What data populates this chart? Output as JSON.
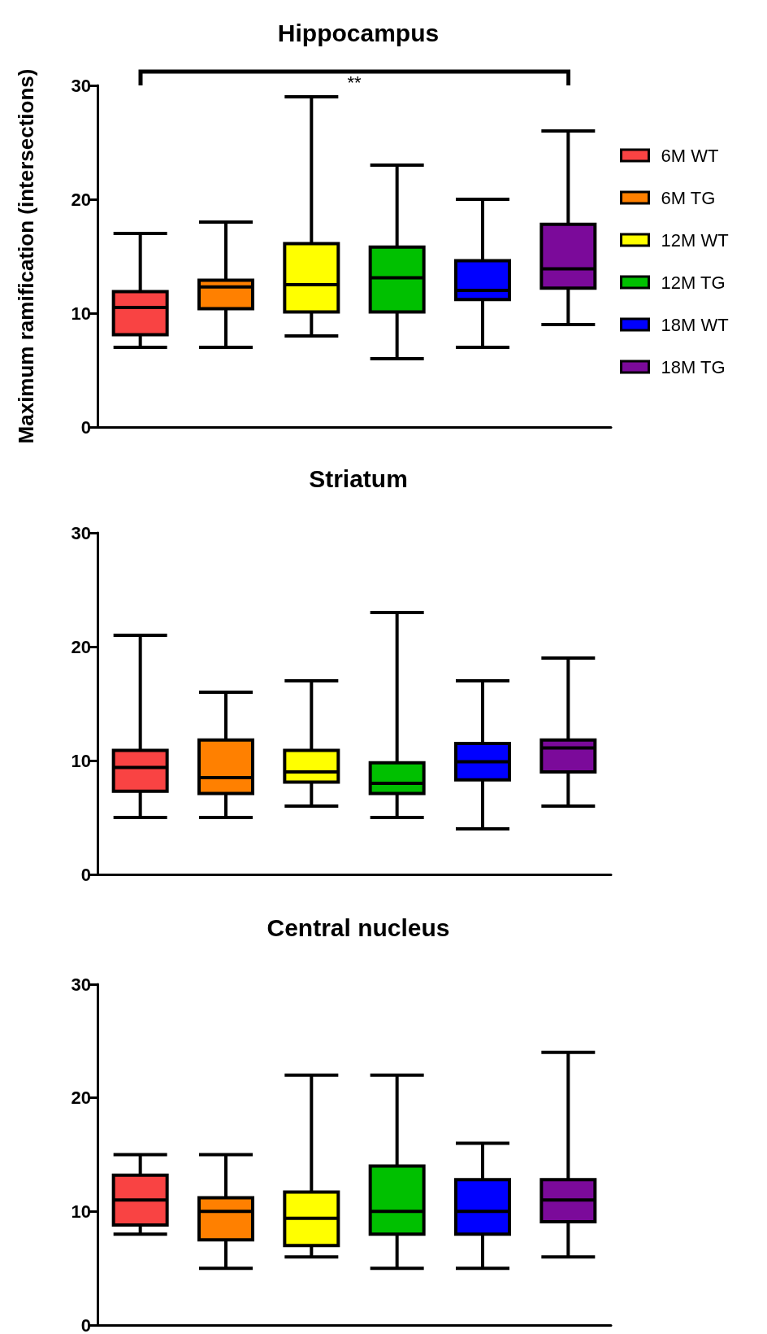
{
  "chart_data": [
    {
      "type": "box",
      "title": "Hippocampus",
      "ylabel": "Maximum ramification (intersections)",
      "categories": [
        null,
        null,
        null,
        null,
        null,
        null
      ],
      "ylim": [
        0,
        30
      ],
      "yticks": [
        0,
        10,
        20,
        30
      ],
      "grid": false,
      "legend": "right",
      "annotations": [
        "**"
      ],
      "series": [
        {
          "name": "6M WT",
          "color": "#f94343",
          "boxes": [
            {
              "low": 7,
              "q1": 8.1,
              "median": 10.5,
              "q3": 11.9,
              "high": 17
            },
            null,
            null,
            null,
            null,
            null
          ]
        },
        {
          "name": "6M TG",
          "color": "#ff8000",
          "boxes": [
            null,
            {
              "low": 7,
              "q1": 10.4,
              "median": 12.3,
              "q3": 12.9,
              "high": 18
            },
            null,
            null,
            null,
            null
          ]
        },
        {
          "name": "12M WT",
          "color": "#ffff00",
          "boxes": [
            null,
            null,
            {
              "low": 8,
              "q1": 10.1,
              "median": 12.5,
              "q3": 16.1,
              "high": 29
            },
            null,
            null,
            null
          ]
        },
        {
          "name": "12M TG",
          "color": "#00c000",
          "boxes": [
            null,
            null,
            null,
            {
              "low": 6,
              "q1": 10.1,
              "median": 13.1,
              "q3": 15.8,
              "high": 23
            },
            null,
            null
          ]
        },
        {
          "name": "18M WT",
          "color": "#0000ff",
          "boxes": [
            null,
            null,
            null,
            null,
            {
              "low": 7,
              "q1": 11.2,
              "median": 12,
              "q3": 14.6,
              "high": 20
            },
            null
          ]
        },
        {
          "name": "18M TG",
          "color": "#7b0a9a",
          "boxes": [
            null,
            null,
            null,
            null,
            null,
            {
              "low": 9,
              "q1": 12.2,
              "median": 13.9,
              "q3": 17.8,
              "high": 26
            }
          ]
        }
      ]
    },
    {
      "type": "box",
      "title": "Striatum",
      "categories": [
        null,
        null,
        null,
        null,
        null,
        null
      ],
      "ylim": [
        0,
        30
      ],
      "yticks": [
        0,
        10,
        20,
        30
      ],
      "grid": false,
      "series": [
        {
          "color": "#f94343",
          "boxes": [
            {
              "low": 5,
              "q1": 7.3,
              "median": 9.4,
              "q3": 10.9,
              "high": 21
            },
            null,
            null,
            null,
            null,
            null
          ]
        },
        {
          "color": "#ff8000",
          "boxes": [
            null,
            {
              "low": 5,
              "q1": 7.1,
              "median": 8.5,
              "q3": 11.8,
              "high": 16
            },
            null,
            null,
            null,
            null
          ]
        },
        {
          "color": "#ffff00",
          "boxes": [
            null,
            null,
            {
              "low": 6,
              "q1": 8.1,
              "median": 9,
              "q3": 10.9,
              "high": 17
            },
            null,
            null,
            null
          ]
        },
        {
          "color": "#00c000",
          "boxes": [
            null,
            null,
            null,
            {
              "low": 5,
              "q1": 7.1,
              "median": 8,
              "q3": 9.8,
              "high": 23
            },
            null,
            null
          ]
        },
        {
          "color": "#0000ff",
          "boxes": [
            null,
            null,
            null,
            null,
            {
              "low": 4,
              "q1": 8.3,
              "median": 9.9,
              "q3": 11.5,
              "high": 17
            },
            null
          ]
        },
        {
          "color": "#7b0a9a",
          "boxes": [
            null,
            null,
            null,
            null,
            null,
            {
              "low": 6,
              "q1": 9,
              "median": 11.1,
              "q3": 11.8,
              "high": 19
            }
          ]
        }
      ]
    },
    {
      "type": "box",
      "title": "Central nucleus",
      "categories": [
        null,
        null,
        null,
        null,
        null,
        null
      ],
      "ylim": [
        0,
        30
      ],
      "yticks": [
        0,
        10,
        20,
        30
      ],
      "grid": false,
      "series": [
        {
          "color": "#f94343",
          "boxes": [
            {
              "low": 8,
              "q1": 8.8,
              "median": 11,
              "q3": 13.2,
              "high": 15
            },
            null,
            null,
            null,
            null,
            null
          ]
        },
        {
          "color": "#ff8000",
          "boxes": [
            null,
            {
              "low": 5,
              "q1": 7.5,
              "median": 10,
              "q3": 11.2,
              "high": 15
            },
            null,
            null,
            null,
            null
          ]
        },
        {
          "color": "#ffff00",
          "boxes": [
            null,
            null,
            {
              "low": 6,
              "q1": 7,
              "median": 9.4,
              "q3": 11.7,
              "high": 22
            },
            null,
            null,
            null
          ]
        },
        {
          "color": "#00c000",
          "boxes": [
            null,
            null,
            null,
            {
              "low": 5,
              "q1": 8,
              "median": 10,
              "q3": 14,
              "high": 22
            },
            null,
            null
          ]
        },
        {
          "color": "#0000ff",
          "boxes": [
            null,
            null,
            null,
            null,
            {
              "low": 5,
              "q1": 8,
              "median": 10,
              "q3": 12.8,
              "high": 16
            },
            null
          ]
        },
        {
          "color": "#7b0a9a",
          "boxes": [
            null,
            null,
            null,
            null,
            null,
            {
              "low": 6,
              "q1": 9.1,
              "median": 11,
              "q3": 12.8,
              "high": 24
            }
          ]
        }
      ]
    }
  ]
}
